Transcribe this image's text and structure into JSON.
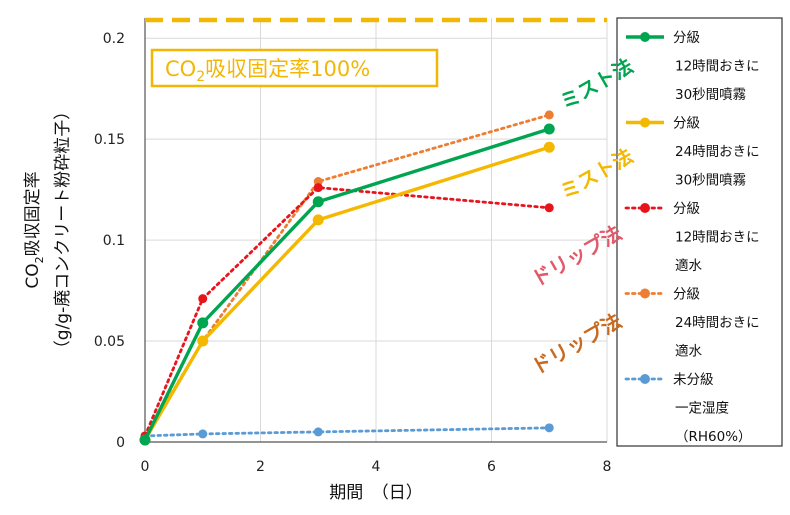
{
  "chart_data": {
    "type": "line",
    "xlabel": "期間　（日）",
    "ylabel_line1": "CO",
    "ylabel_sub": "2",
    "ylabel_line1_rest": "吸収固定率",
    "ylabel_line2": "（g/g-廃コンクリート粉砕粒子）",
    "xlim": [
      0,
      8
    ],
    "ylim": [
      0,
      0.21
    ],
    "x_ticks": [
      0,
      2,
      4,
      6,
      8
    ],
    "x_tick_labels": [
      "0",
      "2",
      "4",
      "6",
      "8"
    ],
    "y_ticks": [
      0,
      0.05,
      0.1,
      0.15,
      0.2
    ],
    "y_tick_labels": [
      "0",
      "0.05",
      "0.1",
      "0.15",
      "0.2"
    ],
    "grid": true,
    "legend_position": "right",
    "reference_line": {
      "y": 0.209,
      "color": "#f2b705",
      "label_prefix": "CO",
      "label_sub": "2",
      "label_rest": "吸収固定率100%"
    },
    "series": [
      {
        "name_lines": [
          "分級",
          "12時間おきに",
          "30秒間噴霧"
        ],
        "color": "#00a550",
        "style": "solid",
        "x": [
          0,
          1,
          3,
          7
        ],
        "y": [
          0.001,
          0.059,
          0.119,
          0.155
        ]
      },
      {
        "name_lines": [
          "分級",
          "24時間おきに",
          "30秒間噴霧"
        ],
        "color": "#f5b800",
        "style": "solid",
        "x": [
          0,
          1,
          3,
          7
        ],
        "y": [
          0.001,
          0.05,
          0.11,
          0.146
        ]
      },
      {
        "name_lines": [
          "分級",
          "12時間おきに",
          "適水"
        ],
        "color": "#e8141c",
        "style": "dotted",
        "x": [
          0,
          1,
          3,
          7
        ],
        "y": [
          0.003,
          0.071,
          0.126,
          0.116
        ]
      },
      {
        "name_lines": [
          "分級",
          "24時間おきに",
          "適水"
        ],
        "color": "#ed7d31",
        "style": "dotted",
        "x": [
          0,
          1,
          3,
          7
        ],
        "y": [
          0.002,
          0.05,
          0.129,
          0.162
        ]
      },
      {
        "name_lines": [
          "未分級",
          "一定湿度",
          "（RH60%）"
        ],
        "color": "#5b9bd5",
        "style": "dotted",
        "x": [
          0,
          1,
          3,
          7
        ],
        "y": [
          0.003,
          0.004,
          0.005,
          0.007
        ]
      }
    ],
    "method_labels": [
      {
        "text": "ミスト法",
        "color": "#00a550"
      },
      {
        "text": "ミスト法",
        "color": "#f5b800"
      },
      {
        "text": "ドリップ法",
        "color": "#e05a6a"
      },
      {
        "text": "ドリップ法",
        "color": "#c96a1e"
      }
    ]
  }
}
